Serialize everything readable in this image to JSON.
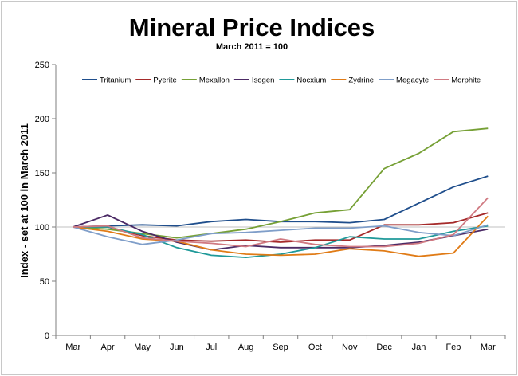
{
  "chart_data": {
    "type": "line",
    "title": "Mineral Price Indices",
    "subtitle": "March 2011 = 100",
    "xlabel": "",
    "ylabel": "Index - set at 100 in March 2011",
    "categories": [
      "Mar",
      "Apr",
      "May",
      "Jun",
      "Jul",
      "Aug",
      "Sep",
      "Oct",
      "Nov",
      "Dec",
      "Jan",
      "Feb",
      "Mar"
    ],
    "ylim": [
      0,
      250
    ],
    "yticks": [
      0,
      50,
      100,
      150,
      200,
      250
    ],
    "grid": false,
    "legend_position": "top",
    "series": [
      {
        "name": "Tritanium",
        "color": "#1f4e8c",
        "values": [
          100,
          101,
          102,
          101,
          105,
          107,
          105,
          105,
          104,
          107,
          122,
          137,
          147
        ]
      },
      {
        "name": "Pyerite",
        "color": "#a52a2a",
        "values": [
          100,
          100,
          92,
          88,
          87,
          88,
          86,
          88,
          88,
          102,
          102,
          104,
          113
        ]
      },
      {
        "name": "Mexallon",
        "color": "#76a035",
        "values": [
          100,
          98,
          94,
          90,
          94,
          98,
          105,
          113,
          116,
          154,
          168,
          188,
          191
        ]
      },
      {
        "name": "Isogen",
        "color": "#4b2a65",
        "values": [
          100,
          111,
          96,
          86,
          79,
          83,
          81,
          81,
          81,
          83,
          86,
          92,
          98
        ]
      },
      {
        "name": "Nocxium",
        "color": "#1f9999",
        "values": [
          100,
          100,
          93,
          81,
          74,
          72,
          75,
          81,
          91,
          89,
          89,
          96,
          101
        ]
      },
      {
        "name": "Zydrine",
        "color": "#e07b16",
        "values": [
          100,
          96,
          89,
          87,
          79,
          75,
          74,
          75,
          80,
          78,
          73,
          76,
          110
        ]
      },
      {
        "name": "Megacyte",
        "color": "#7f9ec9",
        "values": [
          100,
          91,
          84,
          88,
          94,
          95,
          97,
          99,
          99,
          101,
          95,
          92,
          102
        ]
      },
      {
        "name": "Morphite",
        "color": "#d07a82",
        "values": [
          100,
          101,
          90,
          87,
          85,
          82,
          89,
          84,
          82,
          82,
          85,
          93,
          127
        ]
      }
    ]
  }
}
